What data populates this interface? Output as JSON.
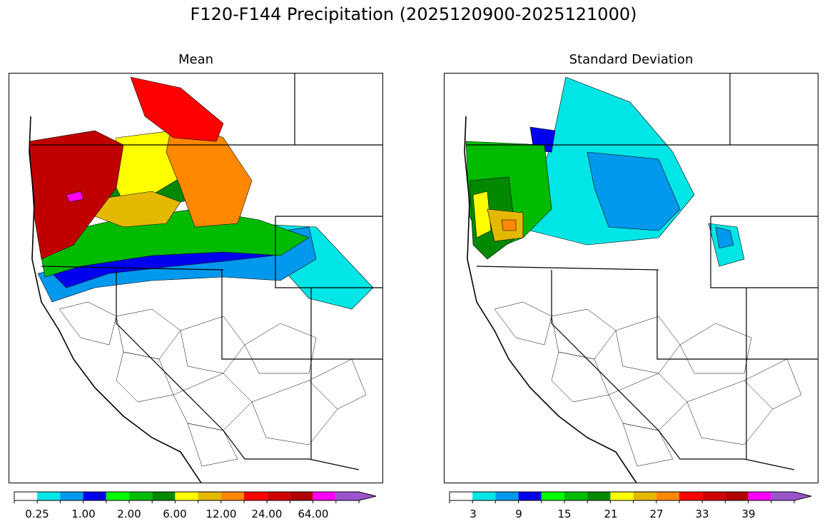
{
  "figure": {
    "suptitle": "F120-F144 Precipitation (2025120900-2025121000)"
  },
  "panels": [
    {
      "title": "Mean",
      "colorbar": {
        "colors": [
          "#ffffff",
          "#00e5e5",
          "#0099ee",
          "#0000ee",
          "#00ff00",
          "#00bb00",
          "#008800",
          "#ffff00",
          "#e5b800",
          "#ff8800",
          "#ff0000",
          "#d00000",
          "#b00000",
          "#ff00ff",
          "#9955cc"
        ],
        "labels": [
          "0.25",
          "1.00",
          "2.00",
          "6.00",
          "12.00",
          "24.00",
          "64.00"
        ],
        "extend": "max"
      }
    },
    {
      "title": "Standard Deviation",
      "colorbar": {
        "colors": [
          "#ffffff",
          "#00e5e5",
          "#0099ee",
          "#0000ee",
          "#00ff00",
          "#00bb00",
          "#008800",
          "#ffff00",
          "#e5b800",
          "#ff8800",
          "#ff0000",
          "#d00000",
          "#b00000",
          "#ff00ff",
          "#9955cc"
        ],
        "labels": [
          "3",
          "9",
          "15",
          "21",
          "27",
          "33",
          "39"
        ],
        "extend": "max"
      }
    }
  ]
}
